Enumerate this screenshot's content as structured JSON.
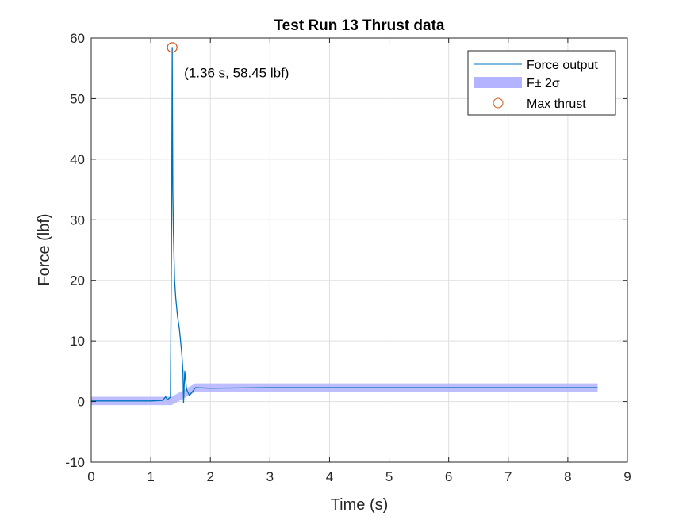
{
  "chart_data": {
    "type": "line",
    "title": "Test Run 13 Thrust data",
    "xlabel": "Time (s)",
    "ylabel": "Force (lbf)",
    "xlim": [
      0,
      9
    ],
    "ylim": [
      -10,
      60
    ],
    "xticks": [
      0,
      1,
      2,
      3,
      4,
      5,
      6,
      7,
      8,
      9
    ],
    "yticks": [
      -10,
      0,
      10,
      20,
      30,
      40,
      50,
      60
    ],
    "grid": true,
    "legend_position": "top-right",
    "series": [
      {
        "name": "Force output",
        "kind": "line",
        "color": "#0072BD",
        "x": [
          0,
          0.5,
          1.0,
          1.2,
          1.25,
          1.28,
          1.3,
          1.33,
          1.35,
          1.36,
          1.37,
          1.38,
          1.4,
          1.42,
          1.45,
          1.48,
          1.5,
          1.52,
          1.54,
          1.55,
          1.57,
          1.6,
          1.65,
          1.75,
          2.0,
          3.0,
          4.0,
          5.0,
          6.0,
          7.0,
          8.0,
          8.5
        ],
        "y": [
          0.1,
          0.1,
          0.1,
          0.2,
          0.8,
          0.3,
          0.5,
          0.7,
          30,
          58.45,
          35,
          28,
          20,
          17,
          14,
          12,
          10,
          8,
          5,
          -0.2,
          5,
          2.0,
          1.0,
          2.3,
          2.2,
          2.3,
          2.3,
          2.3,
          2.3,
          2.3,
          2.3,
          2.3
        ]
      },
      {
        "name": "F± 2σ",
        "kind": "band",
        "color": "#B3B3FF",
        "x": [
          0,
          1.35,
          1.75,
          8.5
        ],
        "upper": [
          0.8,
          0.8,
          3.0,
          3.0
        ],
        "lower": [
          -0.6,
          -0.6,
          1.6,
          1.6
        ]
      },
      {
        "name": "Max thrust",
        "kind": "marker",
        "color": "#D95319",
        "x": [
          1.36
        ],
        "y": [
          58.45
        ]
      }
    ],
    "annotations": [
      {
        "text": "(1.36 s, 58.45 lbf)",
        "x": 1.56,
        "y": 53.5
      }
    ]
  }
}
